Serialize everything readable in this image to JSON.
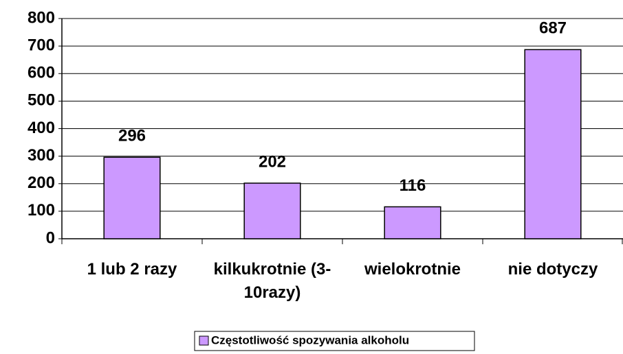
{
  "chart_data": {
    "type": "bar",
    "categories": [
      "1 lub 2 razy",
      "kilkukrotnie (3-10razy)",
      "wielokrotnie",
      "nie dotyczy"
    ],
    "series": [
      {
        "name": "Częstotliwość spozywania alkoholu",
        "color": "#cc99ff",
        "values": [
          296,
          202,
          116,
          687
        ]
      }
    ],
    "ylim": [
      0,
      800
    ],
    "yticks": [
      0,
      100,
      200,
      300,
      400,
      500,
      600,
      700,
      800
    ],
    "grid": true,
    "legend": "bottom"
  }
}
